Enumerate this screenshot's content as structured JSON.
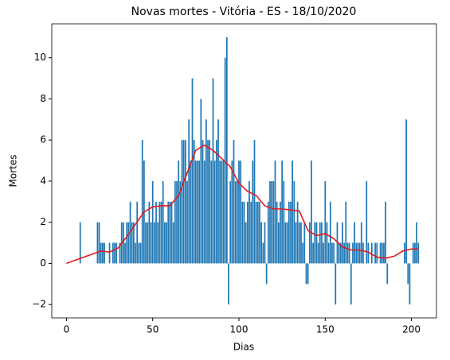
{
  "chart_data": {
    "type": "bar",
    "title": "Novas mortes - Vitória - ES - 18/10/2020",
    "xlabel": "Dias",
    "ylabel": "Mortes",
    "xlim": [
      -8.5,
      214.5
    ],
    "ylim": [
      -2.65,
      11.65
    ],
    "xticks": [
      0,
      50,
      100,
      150,
      200
    ],
    "yticks": [
      {
        "value": -2,
        "label": "−2"
      },
      0,
      2,
      4,
      6,
      8,
      10
    ],
    "grid": false,
    "series": [
      {
        "type": "bar",
        "color": "#1f77b4",
        "x": [
          0,
          1,
          2,
          3,
          4,
          5,
          6,
          7,
          8,
          9,
          10,
          11,
          12,
          13,
          14,
          15,
          16,
          17,
          18,
          19,
          20,
          21,
          22,
          23,
          24,
          25,
          26,
          27,
          28,
          29,
          30,
          31,
          32,
          33,
          34,
          35,
          36,
          37,
          38,
          39,
          40,
          41,
          42,
          43,
          44,
          45,
          46,
          47,
          48,
          49,
          50,
          51,
          52,
          53,
          54,
          55,
          56,
          57,
          58,
          59,
          60,
          61,
          62,
          63,
          64,
          65,
          66,
          67,
          68,
          69,
          70,
          71,
          72,
          73,
          74,
          75,
          76,
          77,
          78,
          79,
          80,
          81,
          82,
          83,
          84,
          85,
          86,
          87,
          88,
          89,
          90,
          91,
          92,
          93,
          94,
          95,
          96,
          97,
          98,
          99,
          100,
          101,
          102,
          103,
          104,
          105,
          106,
          107,
          108,
          109,
          110,
          111,
          112,
          113,
          114,
          115,
          116,
          117,
          118,
          119,
          120,
          121,
          122,
          123,
          124,
          125,
          126,
          127,
          128,
          129,
          130,
          131,
          132,
          133,
          134,
          135,
          136,
          137,
          138,
          139,
          140,
          141,
          142,
          143,
          144,
          145,
          146,
          147,
          148,
          149,
          150,
          151,
          152,
          153,
          154,
          155,
          156,
          157,
          158,
          159,
          160,
          161,
          162,
          163,
          164,
          165,
          166,
          167,
          168,
          169,
          170,
          171,
          172,
          173,
          174,
          175,
          176,
          177,
          178,
          179,
          180,
          181,
          182,
          183,
          184,
          185,
          186,
          187,
          188,
          189,
          190,
          191,
          192,
          193,
          194,
          195,
          196,
          197,
          198,
          199,
          200,
          201,
          202,
          203,
          204
        ],
        "values": [
          0,
          0,
          0,
          0,
          0,
          0,
          0,
          0,
          2,
          0,
          0,
          0,
          0,
          0,
          0,
          0,
          0,
          0,
          2,
          2,
          1,
          1,
          1,
          0,
          0,
          1,
          0,
          1,
          1,
          1,
          0,
          1,
          2,
          2,
          1,
          2,
          2,
          3,
          2,
          2,
          1,
          3,
          1,
          1,
          6,
          5,
          2,
          2,
          3,
          2,
          4,
          2,
          3,
          2,
          3,
          3,
          4,
          2,
          2,
          3,
          3,
          3,
          2,
          4,
          4,
          5,
          4,
          6,
          6,
          6,
          4,
          7,
          5,
          9,
          6,
          5,
          5,
          5,
          8,
          6,
          5,
          7,
          6,
          6,
          5,
          9,
          5,
          6,
          7,
          5,
          5,
          5,
          10,
          11,
          -2,
          4,
          5,
          6,
          4,
          4,
          5,
          5,
          3,
          3,
          2,
          3,
          4,
          3,
          5,
          6,
          3,
          3,
          3,
          2,
          1,
          2,
          -1,
          3,
          4,
          4,
          4,
          5,
          3,
          2,
          3,
          5,
          4,
          2,
          2,
          3,
          3,
          5,
          4,
          2,
          3,
          2,
          2,
          1,
          2,
          -1,
          -1,
          2,
          5,
          1,
          2,
          2,
          1,
          2,
          2,
          1,
          4,
          2,
          1,
          3,
          1,
          1,
          -2,
          2,
          1,
          1,
          2,
          1,
          3,
          1,
          1,
          -2,
          1,
          2,
          1,
          1,
          1,
          2,
          1,
          0,
          4,
          1,
          0,
          1,
          0,
          1,
          1,
          0,
          1,
          1,
          1,
          3,
          -1,
          0,
          0,
          0,
          0,
          0,
          0,
          0,
          0,
          0,
          1,
          7,
          -1,
          -2,
          0,
          1,
          1,
          2,
          1
        ]
      },
      {
        "type": "line",
        "color": "#e31a1c",
        "x": [
          0,
          5,
          10,
          15,
          20,
          25,
          30,
          35,
          40,
          45,
          50,
          55,
          60,
          65,
          70,
          75,
          80,
          85,
          90,
          95,
          100,
          105,
          110,
          115,
          120,
          125,
          130,
          135,
          140,
          145,
          150,
          155,
          160,
          165,
          170,
          175,
          180,
          185,
          190,
          195,
          200,
          204
        ],
        "values": [
          0,
          0.15,
          0.3,
          0.45,
          0.6,
          0.55,
          0.75,
          1.3,
          1.9,
          2.5,
          2.75,
          2.8,
          2.8,
          3.3,
          4.4,
          5.5,
          5.75,
          5.5,
          5.1,
          4.7,
          3.9,
          3.5,
          3.3,
          2.8,
          2.65,
          2.65,
          2.6,
          2.55,
          1.6,
          1.35,
          1.45,
          1.2,
          0.8,
          0.65,
          0.65,
          0.55,
          0.3,
          0.25,
          0.35,
          0.6,
          0.7,
          0.7
        ]
      }
    ]
  }
}
